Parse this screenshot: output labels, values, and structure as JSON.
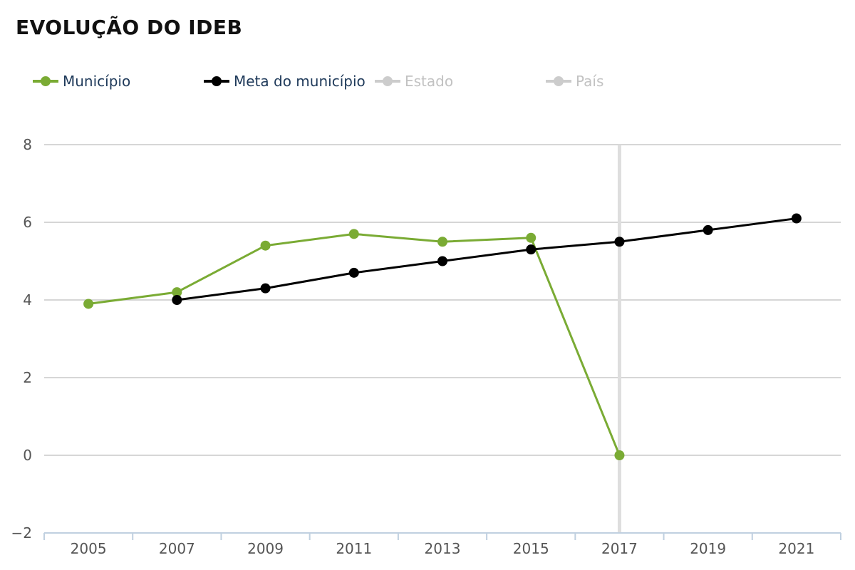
{
  "title": "EVOLUÇÃO DO IDEB",
  "legend": [
    {
      "name": "Município",
      "color": "#7aab34",
      "visible": true
    },
    {
      "name": "Meta do município",
      "color": "#000000",
      "visible": true
    },
    {
      "name": "Estado",
      "color": "#cccccc",
      "visible": false
    },
    {
      "name": "País",
      "color": "#cccccc",
      "visible": false
    }
  ],
  "chart_data": {
    "type": "line",
    "title": "EVOLUÇÃO DO IDEB",
    "x": [
      "2005",
      "2007",
      "2009",
      "2011",
      "2013",
      "2015",
      "2017",
      "2019",
      "2021"
    ],
    "ylim": [
      -2,
      8
    ],
    "yticks": [
      -2,
      0,
      2,
      4,
      6,
      8
    ],
    "ytick_labels": [
      "−2",
      "0",
      "2",
      "4",
      "6",
      "8"
    ],
    "grid": true,
    "highlight_category": "2017",
    "series": [
      {
        "name": "Município",
        "color": "#7aab34",
        "values": [
          3.9,
          4.2,
          5.4,
          5.7,
          5.5,
          5.6,
          0.0,
          null,
          null
        ]
      },
      {
        "name": "Meta do município",
        "color": "#000000",
        "values": [
          null,
          4.0,
          4.3,
          4.7,
          5.0,
          5.3,
          5.5,
          5.8,
          6.1
        ]
      }
    ]
  }
}
